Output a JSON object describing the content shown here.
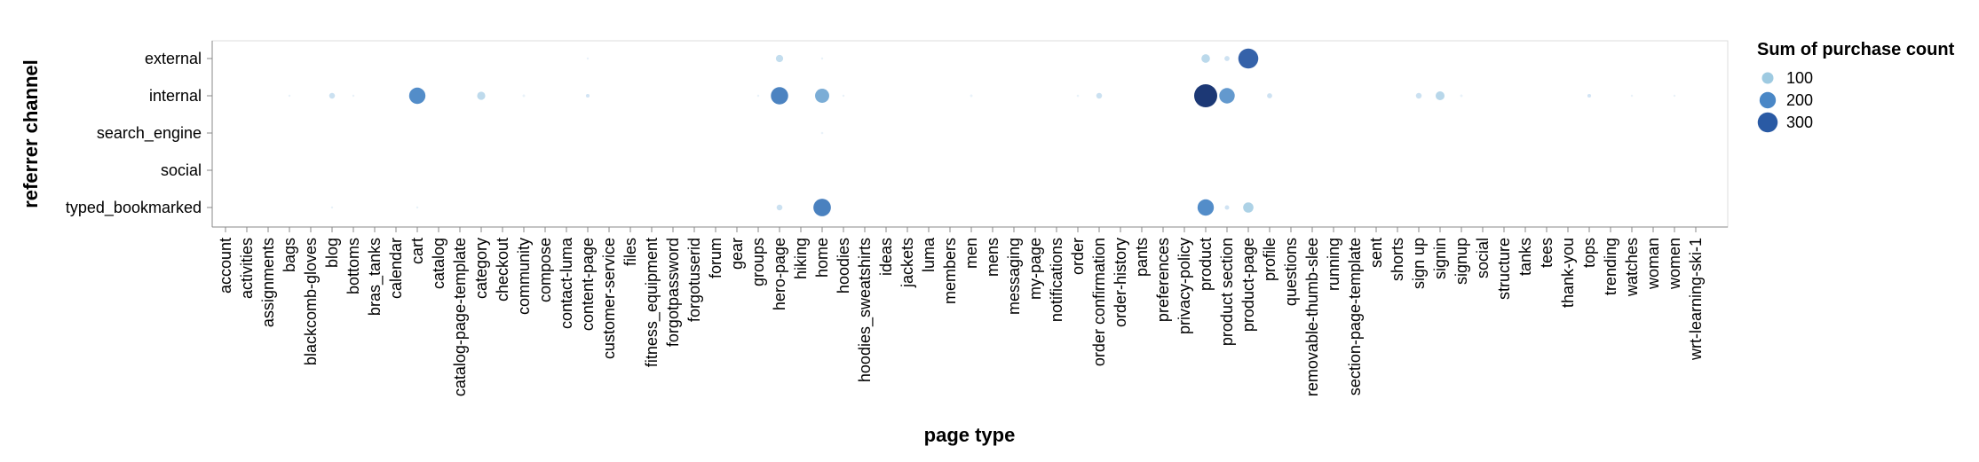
{
  "chart_data": {
    "type": "scatter",
    "xlabel": "page type",
    "ylabel": "referrer channel",
    "categories_x": [
      "account",
      "activities",
      "assignments",
      "bags",
      "blackcomb-gloves",
      "blog",
      "bottoms",
      "bras_tanks",
      "calendar",
      "cart",
      "catalog",
      "catalog-page-template",
      "category",
      "checkout",
      "community",
      "compose",
      "contact-luma",
      "content-page",
      "customer-service",
      "files",
      "fitness_equipment",
      "forgotpassword",
      "forgotuserid",
      "forum",
      "gear",
      "groups",
      "hero-page",
      "hiking",
      "home",
      "hoodies",
      "hoodies_sweatshirts",
      "ideas",
      "jackets",
      "luma",
      "members",
      "men",
      "mens",
      "messaging",
      "my-page",
      "notifications",
      "order",
      "order confirmation",
      "order-history",
      "pants",
      "preferences",
      "privacy-policy",
      "product",
      "product section",
      "product-page",
      "profile",
      "questions",
      "removable-thumb-slee",
      "running",
      "section-page-template",
      "sent",
      "shorts",
      "sign up",
      "signin",
      "signup",
      "social",
      "structure",
      "tanks",
      "tees",
      "thank-you",
      "tops",
      "trending",
      "watches",
      "woman",
      "women",
      "wrt-learning-ski-1"
    ],
    "categories_y": [
      "external",
      "internal",
      "search_engine",
      "social",
      "typed_bookmarked"
    ],
    "size_legend": {
      "title": "Sum of purchase count",
      "values": [
        100,
        200,
        300
      ],
      "colors": [
        "#9ecae1",
        "#4a87c6",
        "#2a5aa4"
      ]
    },
    "grid": false,
    "legend_position": "top-right",
    "points": [
      {
        "x": "hero-page",
        "y": "external",
        "value": 40
      },
      {
        "x": "product",
        "y": "external",
        "value": 55
      },
      {
        "x": "product section",
        "y": "external",
        "value": 20
      },
      {
        "x": "product-page",
        "y": "external",
        "value": 300
      },
      {
        "x": "home",
        "y": "external",
        "value": 3
      },
      {
        "x": "content-page",
        "y": "external",
        "value": 2
      },
      {
        "x": "blog",
        "y": "internal",
        "value": 25
      },
      {
        "x": "cart",
        "y": "internal",
        "value": 200
      },
      {
        "x": "category",
        "y": "internal",
        "value": 50
      },
      {
        "x": "hero-page",
        "y": "internal",
        "value": 225
      },
      {
        "x": "home",
        "y": "internal",
        "value": 150
      },
      {
        "x": "product",
        "y": "internal",
        "value": 400
      },
      {
        "x": "product section",
        "y": "internal",
        "value": 180
      },
      {
        "x": "order confirmation",
        "y": "internal",
        "value": 25
      },
      {
        "x": "profile",
        "y": "internal",
        "value": 20
      },
      {
        "x": "sign up",
        "y": "internal",
        "value": 25
      },
      {
        "x": "signin",
        "y": "internal",
        "value": 60
      },
      {
        "x": "bags",
        "y": "internal",
        "value": 3
      },
      {
        "x": "bottoms",
        "y": "internal",
        "value": 3
      },
      {
        "x": "community",
        "y": "internal",
        "value": 5
      },
      {
        "x": "content-page",
        "y": "internal",
        "value": 10
      },
      {
        "x": "men",
        "y": "internal",
        "value": 5
      },
      {
        "x": "order",
        "y": "internal",
        "value": 4
      },
      {
        "x": "tops",
        "y": "internal",
        "value": 10
      },
      {
        "x": "signup",
        "y": "internal",
        "value": 5
      },
      {
        "x": "watches",
        "y": "internal",
        "value": 3
      },
      {
        "x": "women",
        "y": "internal",
        "value": 3
      },
      {
        "x": "groups",
        "y": "internal",
        "value": 3
      },
      {
        "x": "hoodies",
        "y": "internal",
        "value": 3
      },
      {
        "x": "home",
        "y": "search_engine",
        "value": 4
      },
      {
        "x": "hero-page",
        "y": "typed_bookmarked",
        "value": 25
      },
      {
        "x": "home",
        "y": "typed_bookmarked",
        "value": 230
      },
      {
        "x": "product",
        "y": "typed_bookmarked",
        "value": 200
      },
      {
        "x": "product section",
        "y": "typed_bookmarked",
        "value": 15
      },
      {
        "x": "product-page",
        "y": "typed_bookmarked",
        "value": 80
      },
      {
        "x": "blog",
        "y": "typed_bookmarked",
        "value": 3
      },
      {
        "x": "cart",
        "y": "typed_bookmarked",
        "value": 3
      }
    ]
  }
}
